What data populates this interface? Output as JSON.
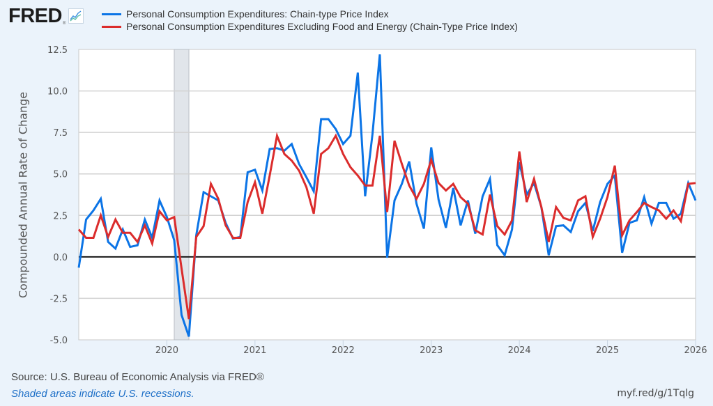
{
  "header": {
    "logo_text": "FRED",
    "logo_reg": "®",
    "logo_icon": "line-chart-icon"
  },
  "legend": [
    {
      "label": "Personal Consumption Expenditures: Chain-type Price Index",
      "color": "#0b74e6"
    },
    {
      "label": "Personal Consumption Expenditures Excluding Food and Energy (Chain-Type Price Index)",
      "color": "#db2c2c"
    }
  ],
  "footer": {
    "source": "Source: U.S. Bureau of Economic Analysis via FRED®",
    "note": "Shaded areas indicate U.S. recessions.",
    "link": "myf.red/g/1Tqlg"
  },
  "chart_data": {
    "type": "line",
    "title": "",
    "xlabel": "",
    "ylabel": "Compounded Annual Rate of Change",
    "x_start": "2019-01",
    "x_end": "2026-01",
    "frequency": "monthly",
    "xlim": [
      2019.0,
      2026.0
    ],
    "ylim": [
      -5.0,
      12.5
    ],
    "yticks": [
      "-5.0",
      "-2.5",
      "0.0",
      "2.5",
      "5.0",
      "7.5",
      "10.0",
      "12.5"
    ],
    "ytick_values": [
      -5.0,
      -2.5,
      0.0,
      2.5,
      5.0,
      7.5,
      10.0,
      12.5
    ],
    "xticks": [
      "2020",
      "2021",
      "2022",
      "2023",
      "2024",
      "2025",
      "2026"
    ],
    "xtick_values": [
      2020,
      2021,
      2022,
      2023,
      2024,
      2025,
      2026
    ],
    "grid": true,
    "zero_line": true,
    "recessions": [
      {
        "start": "2020-02",
        "end": "2020-04"
      }
    ],
    "series": [
      {
        "name": "Personal Consumption Expenditures: Chain-type Price Index",
        "color": "#0b74e6",
        "values": [
          -0.65,
          2.25,
          2.8,
          3.5,
          0.9,
          0.5,
          1.65,
          0.6,
          0.7,
          2.25,
          1.15,
          3.4,
          2.4,
          1.0,
          -3.5,
          -4.8,
          1.3,
          3.9,
          3.65,
          3.4,
          2.05,
          1.1,
          1.2,
          5.1,
          5.25,
          4.0,
          6.5,
          6.55,
          6.4,
          6.8,
          5.6,
          4.8,
          3.95,
          8.3,
          8.3,
          7.7,
          6.8,
          7.3,
          11.1,
          3.65,
          7.4,
          12.2,
          -0.05,
          3.4,
          4.4,
          5.75,
          3.2,
          1.7,
          6.6,
          3.45,
          1.75,
          4.15,
          1.9,
          3.4,
          1.4,
          3.65,
          4.7,
          0.7,
          0.1,
          1.65,
          5.7,
          3.75,
          4.45,
          3.0,
          0.1,
          1.85,
          1.9,
          1.5,
          2.75,
          3.25,
          1.55,
          3.3,
          4.4,
          4.9,
          0.25,
          2.05,
          2.2,
          3.6,
          2.0,
          3.25,
          3.25,
          2.3,
          2.6,
          4.45,
          3.4
        ]
      },
      {
        "name": "Personal Consumption Expenditures Excluding Food and Energy (Chain-Type Price Index)",
        "color": "#db2c2c",
        "values": [
          1.65,
          1.15,
          1.15,
          2.5,
          1.2,
          2.25,
          1.45,
          1.45,
          0.9,
          1.9,
          0.8,
          2.75,
          2.2,
          2.4,
          -0.7,
          -3.75,
          1.2,
          1.85,
          4.4,
          3.5,
          1.9,
          1.15,
          1.15,
          3.3,
          4.5,
          2.6,
          4.9,
          7.3,
          6.2,
          5.8,
          5.2,
          4.2,
          2.6,
          6.2,
          6.55,
          7.3,
          6.2,
          5.4,
          4.9,
          4.3,
          4.3,
          7.3,
          2.7,
          7.0,
          5.6,
          4.3,
          3.5,
          4.4,
          5.85,
          4.45,
          4.0,
          4.4,
          3.6,
          3.2,
          1.6,
          1.35,
          3.75,
          1.85,
          1.35,
          2.2,
          6.35,
          3.3,
          4.7,
          3.0,
          0.9,
          3.0,
          2.35,
          2.2,
          3.4,
          3.65,
          1.2,
          2.3,
          3.6,
          5.5,
          1.3,
          2.2,
          2.7,
          3.25,
          3.0,
          2.8,
          2.3,
          2.8,
          2.15,
          4.4,
          4.45
        ]
      }
    ]
  }
}
